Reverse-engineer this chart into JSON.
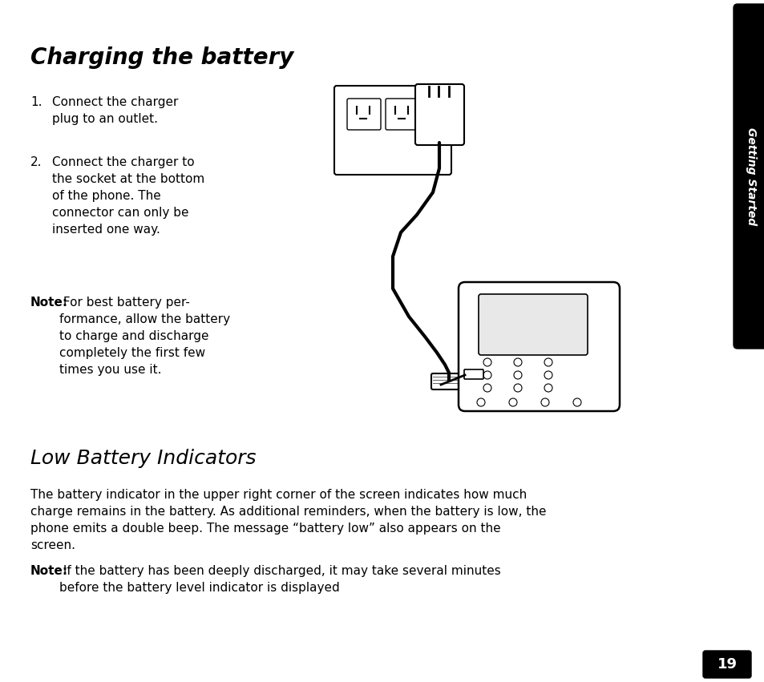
{
  "title": "Charging the battery",
  "section2_title": "Low Battery Indicators",
  "step1": "Connect the charger\nplug to an outlet.",
  "step2": "Connect the charger to\nthe socket at the bottom\nof the phone. The\nconnector can only be\ninserted one way.",
  "note1_bold": "Note:",
  "note1_text": " For best battery per-\nformance, allow the battery\nto charge and discharge\ncompletely the first few\ntimes you use it.",
  "para1": "The battery indicator in the upper right corner of the screen indicates how much\ncharge remains in the battery. As additional reminders, when the battery is low, the\nphone emits a double beep. The message “battery low” also appears on the\nscreen.",
  "note2_bold": "Note:",
  "note2_text": " If the battery has been deeply discharged, it may take several minutes\nbefore the battery level indicator is displayed",
  "page_number": "19",
  "sidebar_text": "Getting Started",
  "bg_color": "#ffffff",
  "sidebar_color": "#000000",
  "sidebar_text_color": "#ffffff",
  "page_num_bg": "#000000",
  "page_num_color": "#ffffff",
  "title_fontsize": 20,
  "section2_fontsize": 18,
  "body_fontsize": 11,
  "step_fontsize": 11,
  "note_fontsize": 11
}
